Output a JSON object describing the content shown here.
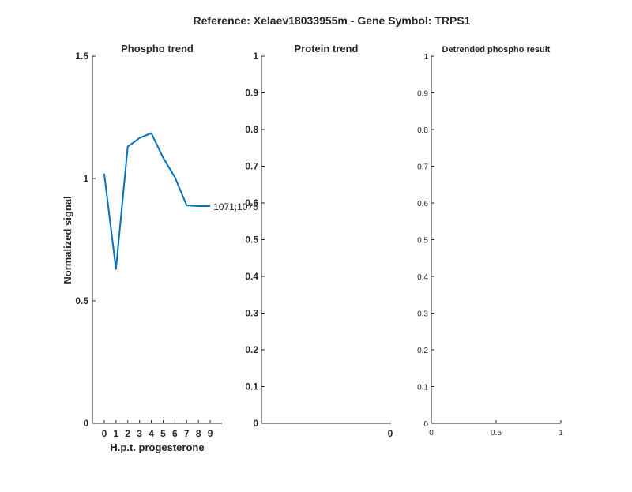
{
  "figure": {
    "suptitle": "Reference:  Xelaev18033955m - Gene Symbol:  TRPS1"
  },
  "chart_data": [
    {
      "type": "line",
      "title": "Phospho trend",
      "xlabel": "H.p.t. progesterone",
      "ylabel": "Normalized signal",
      "xlim": [
        -1,
        10
      ],
      "ylim": [
        0,
        1.5
      ],
      "x_ticks": [
        0,
        1,
        2,
        3,
        4,
        5,
        6,
        7,
        8,
        9
      ],
      "y_ticks": [
        0,
        0.5,
        1,
        1.5
      ],
      "y_tick_labels": [
        "0",
        "0.5",
        "1",
        "1.5"
      ],
      "series": [
        {
          "name": "1071;1075",
          "color": "#0072bd",
          "x": [
            0,
            1,
            2,
            3,
            4,
            5,
            6,
            7,
            8,
            9
          ],
          "y": [
            1.02,
            0.63,
            1.13,
            1.165,
            1.185,
            1.085,
            1.005,
            0.89,
            0.887,
            0.887
          ]
        }
      ],
      "series_label": "1071;1075",
      "grid": false
    },
    {
      "type": "line",
      "title": "Protein trend",
      "xlabel": "",
      "ylabel": "",
      "ylim": [
        0,
        1
      ],
      "y_ticks": [
        "0",
        "0.1",
        "0.2",
        "0.3",
        "0.4",
        "0.5",
        "0.6",
        "0.7",
        "0.8",
        "0.9",
        "1"
      ],
      "x_ticks": [
        "0"
      ],
      "series": [],
      "grid": false
    },
    {
      "type": "line",
      "title": "Detrended phospho result",
      "xlabel": "",
      "ylabel": "",
      "xlim": [
        0,
        1
      ],
      "ylim": [
        0,
        1
      ],
      "y_ticks": [
        "0",
        "0.1",
        "0.2",
        "0.3",
        "0.4",
        "0.5",
        "0.6",
        "0.7",
        "0.8",
        "0.9",
        "1"
      ],
      "x_ticks": [
        "0",
        "0.5",
        "1"
      ],
      "series": [],
      "grid": false
    }
  ]
}
